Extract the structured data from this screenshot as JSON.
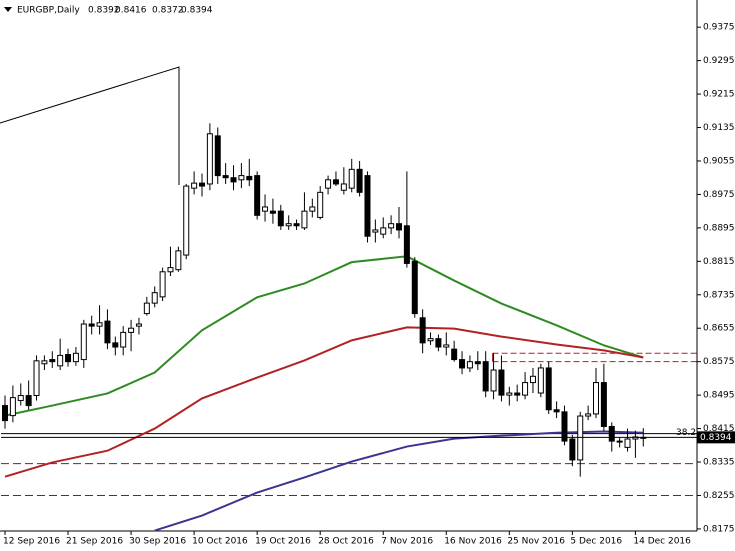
{
  "chart_data": {
    "type": "candlestick",
    "title": "EURGBP,Daily",
    "categories": [
      "12 Sep 2016",
      null,
      null,
      null,
      null,
      null,
      null,
      null,
      "21 Sep 2016",
      null,
      null,
      null,
      null,
      null,
      null,
      null,
      "30 Sep 2016",
      null,
      null,
      null,
      null,
      null,
      null,
      null,
      "10 Oct 2016",
      null,
      null,
      null,
      null,
      null,
      null,
      null,
      "19 Oct 2016",
      null,
      null,
      null,
      null,
      null,
      null,
      null,
      "28 Oct 2016",
      null,
      null,
      null,
      null,
      null,
      null,
      null,
      "7 Nov 2016",
      null,
      null,
      null,
      null,
      null,
      null,
      null,
      "16 Nov 2016",
      null,
      null,
      null,
      null,
      null,
      null,
      null,
      "25 Nov 2016",
      null,
      null,
      null,
      null,
      null,
      null,
      null,
      "5 Dec 2016",
      null,
      null,
      null,
      null,
      null,
      null,
      null,
      "14 Dec 2016",
      null
    ],
    "open": [
      0.847,
      0.8446,
      0.8482,
      0.8494,
      0.8494,
      0.857,
      0.858,
      0.8565,
      0.8592,
      0.8575,
      0.858,
      0.8665,
      0.866,
      0.8672,
      0.862,
      0.861,
      0.8645,
      0.866,
      0.869,
      0.8715,
      0.873,
      0.879,
      0.8795,
      0.883,
      0.899,
      0.9002,
      0.9,
      0.9115,
      0.902,
      0.9015,
      0.901,
      0.9018,
      0.902,
      0.8935,
      0.8935,
      0.8935,
      0.89,
      0.8905,
      0.8895,
      0.8935,
      0.892,
      0.899,
      0.901,
      0.8985,
      0.899,
      0.9035,
      0.902,
      0.8885,
      0.888,
      0.8895,
      0.8905,
      0.89,
      0.8815,
      0.868,
      0.8625,
      0.863,
      0.861,
      0.8605,
      0.858,
      0.856,
      0.8575,
      0.8575,
      0.8505,
      0.8555,
      0.8495,
      0.85,
      0.8495,
      0.8525,
      0.85,
      0.856,
      0.846,
      0.8455,
      0.839,
      0.834,
      0.8445,
      0.845,
      0.8525,
      0.842,
      0.8385,
      0.837,
      0.839,
      0.8392
    ],
    "high": [
      0.8494,
      0.8518,
      0.8523,
      0.853,
      0.859,
      0.859,
      0.86,
      0.863,
      0.8606,
      0.861,
      0.8675,
      0.8685,
      0.871,
      0.87,
      0.8635,
      0.866,
      0.8675,
      0.868,
      0.873,
      0.8755,
      0.88,
      0.885,
      0.885,
      0.9,
      0.903,
      0.9025,
      0.9145,
      0.9135,
      0.905,
      0.9045,
      0.905,
      0.906,
      0.903,
      0.8975,
      0.8965,
      0.895,
      0.8925,
      0.8915,
      0.898,
      0.8965,
      0.8995,
      0.902,
      0.903,
      0.904,
      0.906,
      0.9055,
      0.903,
      0.8915,
      0.892,
      0.8925,
      0.8945,
      0.903,
      0.8825,
      0.87,
      0.8645,
      0.864,
      0.8645,
      0.8625,
      0.86,
      0.859,
      0.86,
      0.86,
      0.8595,
      0.859,
      0.8515,
      0.852,
      0.855,
      0.856,
      0.857,
      0.8575,
      0.848,
      0.847,
      0.84,
      0.8455,
      0.847,
      0.856,
      0.857,
      0.843,
      0.8395,
      0.8415,
      0.841,
      0.8416
    ],
    "low": [
      0.8415,
      0.843,
      0.847,
      0.846,
      0.8482,
      0.8555,
      0.856,
      0.8555,
      0.8563,
      0.8565,
      0.856,
      0.864,
      0.864,
      0.8605,
      0.859,
      0.859,
      0.86,
      0.864,
      0.8685,
      0.8705,
      0.872,
      0.878,
      0.879,
      0.882,
      0.8975,
      0.897,
      0.8985,
      0.9,
      0.9,
      0.8985,
      0.899,
      0.8995,
      0.8915,
      0.891,
      0.8905,
      0.889,
      0.889,
      0.889,
      0.889,
      0.892,
      0.8915,
      0.8975,
      0.8995,
      0.8975,
      0.898,
      0.897,
      0.886,
      0.886,
      0.887,
      0.888,
      0.887,
      0.88,
      0.868,
      0.8595,
      0.8615,
      0.86,
      0.859,
      0.8575,
      0.8545,
      0.855,
      0.8555,
      0.849,
      0.8485,
      0.848,
      0.847,
      0.848,
      0.8485,
      0.85,
      0.849,
      0.845,
      0.844,
      0.8375,
      0.8325,
      0.83,
      0.8435,
      0.844,
      0.841,
      0.836,
      0.837,
      0.836,
      0.8345,
      0.8372
    ],
    "close": [
      0.8434,
      0.8489,
      0.8494,
      0.847,
      0.8577,
      0.8577,
      0.8575,
      0.859,
      0.8575,
      0.8595,
      0.8665,
      0.866,
      0.8668,
      0.862,
      0.861,
      0.8645,
      0.8655,
      0.8665,
      0.8715,
      0.874,
      0.879,
      0.88,
      0.884,
      0.8995,
      0.9002,
      0.8995,
      0.912,
      0.902,
      0.9015,
      0.9005,
      0.902,
      0.901,
      0.8925,
      0.8945,
      0.893,
      0.89,
      0.8905,
      0.89,
      0.8935,
      0.8945,
      0.898,
      0.901,
      0.9,
      0.9,
      0.9035,
      0.898,
      0.8875,
      0.889,
      0.8895,
      0.8905,
      0.889,
      0.881,
      0.869,
      0.862,
      0.863,
      0.861,
      0.8615,
      0.858,
      0.856,
      0.8575,
      0.857,
      0.8505,
      0.8555,
      0.8495,
      0.85,
      0.8495,
      0.8525,
      0.854,
      0.856,
      0.846,
      0.8455,
      0.8385,
      0.834,
      0.8445,
      0.845,
      0.8525,
      0.842,
      0.8385,
      0.8385,
      0.839,
      0.8395,
      0.8394
    ],
    "series": [
      {
        "color": "#2e8b22",
        "x": [
          0,
          6,
          13,
          19,
          25,
          32,
          38,
          44,
          51,
          57,
          63,
          70,
          76,
          81
        ],
        "values": [
          0.8446,
          0.847,
          0.8499,
          0.8549,
          0.865,
          0.8729,
          0.8762,
          0.8813,
          0.8827,
          0.8769,
          0.8714,
          0.8662,
          0.8614,
          0.8585
        ]
      },
      {
        "color": "#b22222",
        "x": [
          0,
          6,
          13,
          19,
          25,
          32,
          38,
          44,
          51,
          57,
          63,
          70,
          76,
          81
        ],
        "values": [
          0.83,
          0.8334,
          0.8362,
          0.8415,
          0.8487,
          0.8537,
          0.8578,
          0.8626,
          0.8657,
          0.8654,
          0.8635,
          0.8616,
          0.8602,
          0.8585
        ]
      },
      {
        "color": "#3d3393",
        "x": [
          19,
          25,
          32,
          38,
          44,
          51,
          57,
          63,
          70,
          76,
          81
        ],
        "values": [
          0.8171,
          0.8207,
          0.8262,
          0.8298,
          0.8336,
          0.8372,
          0.8391,
          0.8398,
          0.8405,
          0.8408,
          0.8405
        ]
      }
    ],
    "levels": [
      {
        "value": 0.8403,
        "color": "#000000",
        "style": "solid",
        "label": "38.2"
      },
      {
        "value": 0.8331,
        "color": "#8b1a1a",
        "style": "dashed"
      },
      {
        "value": 0.8255,
        "color": "#8b1a1a",
        "style": "dashed"
      }
    ],
    "zone": {
      "from": 62,
      "top": 0.8595,
      "bottom": 0.8575,
      "color": "#b22222"
    },
    "ylim": [
      0.817,
      0.944
    ],
    "yticks": [
      0.9375,
      0.9295,
      0.9215,
      0.9135,
      0.9055,
      0.8975,
      0.8895,
      0.8815,
      0.8735,
      0.8655,
      0.8575,
      0.8495,
      0.8415,
      0.8335,
      0.8255,
      0.8175
    ]
  }
}
